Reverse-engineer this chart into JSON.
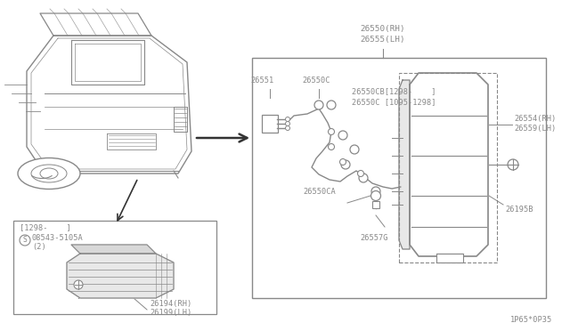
{
  "bg_color": "#ffffff",
  "line_color": "#888888",
  "text_color": "#888888",
  "fig_width": 6.4,
  "fig_height": 3.72,
  "dpi": 100,
  "diagram_code": "1P65*0P35",
  "parts": {
    "26550_RH": "26550(RH)",
    "26555_LH": "26555(LH)",
    "26551": "26551",
    "26550C": "26550C",
    "26550CB": "26550CB[1298-    ]",
    "26550C_range": "26550C [1095-1298]",
    "26554_RH": "26554(RH)",
    "26559_LH": "26559(LH)",
    "26550CA": "26550CA",
    "26557G": "26557G",
    "26195B": "26195B",
    "26194_RH": "26194(RH)",
    "26199_LH": "26199(LH)",
    "bolt": "08543-5105A",
    "bolt_qty": "(2)",
    "date_ref": "[1298-    ]",
    "s_mark": "S"
  }
}
